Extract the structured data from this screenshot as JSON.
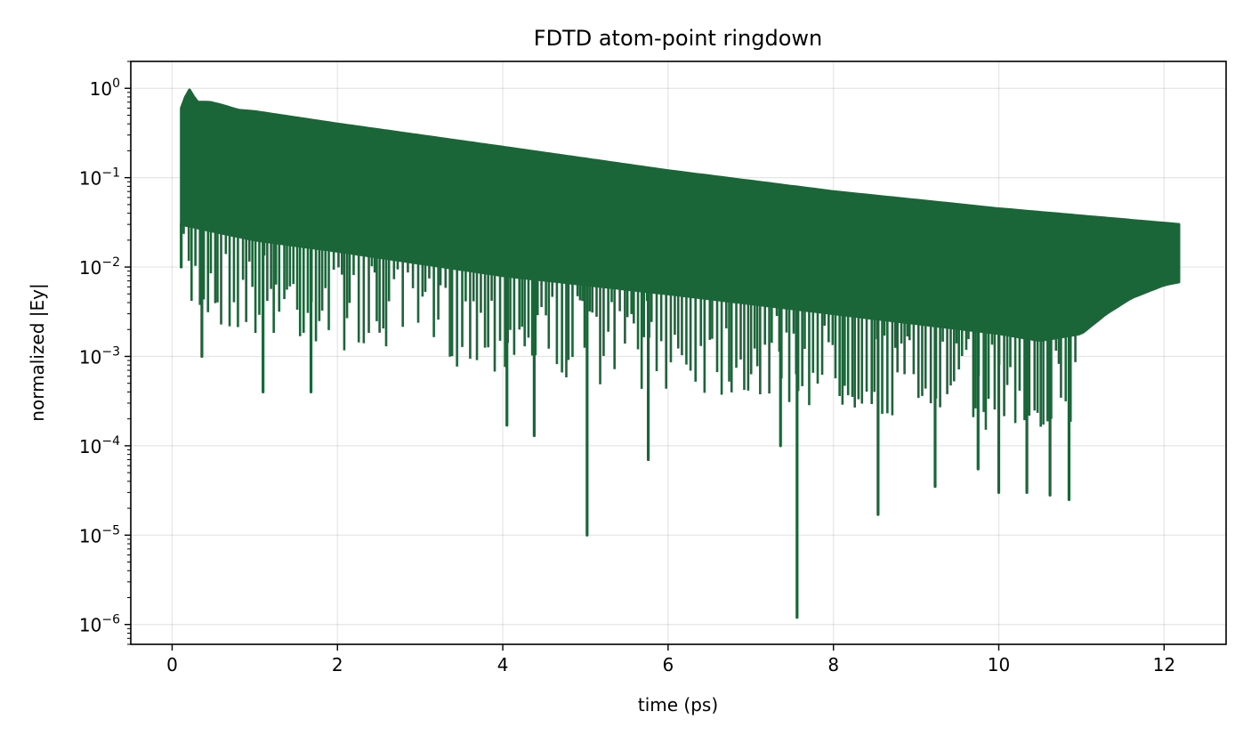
{
  "chart_data": {
    "type": "line",
    "title": "FDTD atom-point ringdown",
    "xlabel": "time (ps)",
    "ylabel": "normalized |Ey|",
    "x_scale": "linear",
    "y_scale": "log",
    "xlim": [
      -0.5,
      12.75
    ],
    "ylim": [
      6e-07,
      2.0
    ],
    "x_ticks": [
      0,
      2,
      4,
      6,
      8,
      10,
      12
    ],
    "x_tick_labels": [
      "0",
      "2",
      "4",
      "6",
      "8",
      "10",
      "12"
    ],
    "y_ticks": [
      1e-06,
      1e-05,
      0.0001,
      0.001,
      0.01,
      0.1,
      1
    ],
    "y_tick_labels": [
      {
        "base": "10",
        "exp": "−6"
      },
      {
        "base": "10",
        "exp": "−5"
      },
      {
        "base": "10",
        "exp": "−4"
      },
      {
        "base": "10",
        "exp": "−3"
      },
      {
        "base": "10",
        "exp": "−2"
      },
      {
        "base": "10",
        "exp": "−1"
      },
      {
        "base": "10",
        "exp": "0"
      }
    ],
    "grid": true,
    "color": "#1a6638",
    "series": [
      {
        "upper_envelope": {
          "x": [
            0.11,
            0.2,
            0.3,
            0.45,
            0.6,
            0.8,
            1.0,
            2.0,
            4.0,
            6.0,
            8.0,
            10.0,
            12.18
          ],
          "y": [
            0.6,
            1.0,
            0.7,
            0.7,
            0.65,
            0.57,
            0.55,
            0.4,
            0.22,
            0.12,
            0.07,
            0.045,
            0.03
          ]
        },
        "lower_band": {
          "x": [
            0.11,
            0.5,
            1.0,
            2.0,
            4.0,
            6.0,
            8.0,
            10.0,
            10.5,
            11.0,
            11.3,
            11.6,
            12.0,
            12.18
          ],
          "y": [
            0.03,
            0.025,
            0.02,
            0.015,
            0.008,
            0.005,
            0.003,
            0.0018,
            0.0015,
            0.0018,
            0.003,
            0.0045,
            0.0063,
            0.0068
          ]
        },
        "dips": {
          "x": [
            0.11,
            0.36,
            1.1,
            1.68,
            4.05,
            4.38,
            5.02,
            5.76,
            7.36,
            7.56,
            8.54,
            9.23,
            9.75,
            10.0,
            10.34,
            10.62,
            10.85
          ],
          "y": [
            0.01,
            0.001,
            0.0004,
            0.0004,
            0.00017,
            0.00013,
            1e-05,
            7e-05,
            0.0001,
            1.2e-06,
            1.7e-05,
            3.5e-05,
            5.5e-05,
            3e-05,
            3e-05,
            2.8e-05,
            2.5e-05
          ]
        }
      }
    ]
  }
}
